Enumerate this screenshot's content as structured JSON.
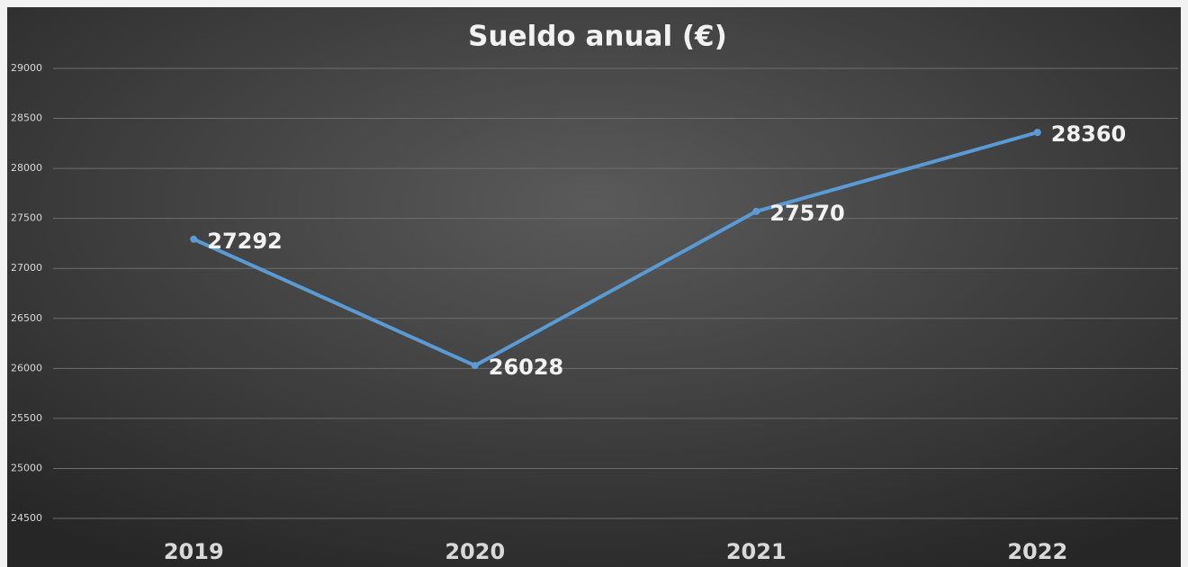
{
  "chart_data": {
    "type": "line",
    "title": "Sueldo anual (€)",
    "categories": [
      "2019",
      "2020",
      "2021",
      "2022"
    ],
    "series": [
      {
        "name": "Sueldo anual (€)",
        "color": "#5b9bd5",
        "values": [
          27292,
          26028,
          27570,
          28360
        ]
      }
    ],
    "ylim": [
      24500,
      29000
    ],
    "yticks": [
      24500,
      25000,
      25500,
      26000,
      26500,
      27000,
      27500,
      28000,
      28500,
      29000
    ],
    "grid": true
  }
}
